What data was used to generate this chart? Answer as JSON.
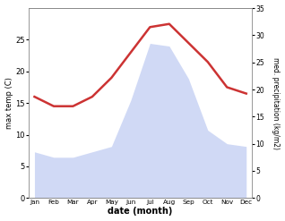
{
  "months": [
    "Jan",
    "Feb",
    "Mar",
    "Apr",
    "May",
    "Jun",
    "Jul",
    "Aug",
    "Sep",
    "Oct",
    "Nov",
    "Dec"
  ],
  "max_temp": [
    16.0,
    14.5,
    14.5,
    16.0,
    19.0,
    23.0,
    27.0,
    27.5,
    24.5,
    21.5,
    17.5,
    16.5
  ],
  "precipitation": [
    8.5,
    7.5,
    7.5,
    8.5,
    9.5,
    18.0,
    28.5,
    28.0,
    22.0,
    12.5,
    10.0,
    9.5
  ],
  "temp_color": "#cc3333",
  "precip_color": "#aabbee",
  "precip_fill_alpha": 0.55,
  "xlabel": "date (month)",
  "ylabel_left": "max temp (C)",
  "ylabel_right": "med. precipitation (kg/m2)",
  "ylim_left": [
    0,
    30
  ],
  "ylim_right": [
    0,
    35
  ],
  "yticks_left": [
    0,
    5,
    10,
    15,
    20,
    25
  ],
  "yticks_right": [
    0,
    5,
    10,
    15,
    20,
    25,
    30,
    35
  ],
  "bg_color": "#ffffff",
  "spine_color": "#888888",
  "line_width": 1.8
}
